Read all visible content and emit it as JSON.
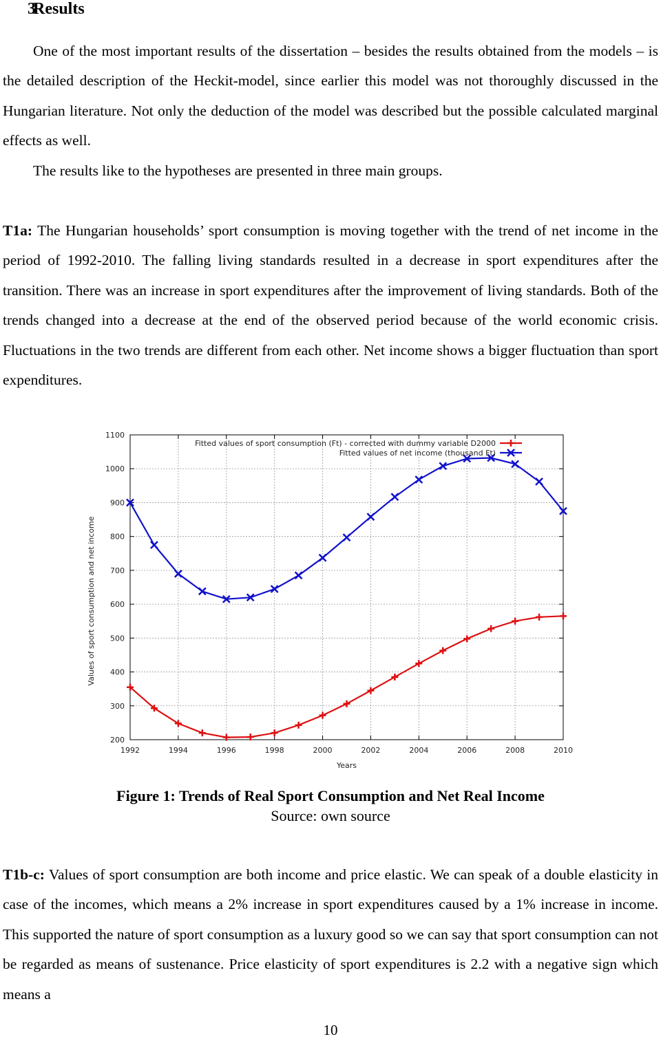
{
  "section": {
    "number": "3",
    "title": "Results"
  },
  "paragraphs": {
    "p1": "One of the most important results of the dissertation – besides the results obtained from the models – is the detailed description of the Heckit-model, since earlier this model was not thoroughly discussed in the Hungarian literature. Not only the deduction of the model was described but the possible calculated marginal effects as well.",
    "p2": "The results like to the hypotheses are presented in three main groups.",
    "p3_label": "T1a:",
    "p3": " The Hungarian households’ sport consumption is moving together with the trend of net income in the period of 1992-2010. The falling living standards resulted in a decrease in sport expenditures after the transition. There was an increase in sport expenditures after the improvement of living standards. Both of the trends changed into a decrease at the end of the observed period because of the world economic crisis. Fluctuations in the two trends are different from each other. Net income shows a bigger fluctuation than sport expenditures.",
    "p4_label": "T1b-c:",
    "p4": " Values of sport consumption are both income and price elastic. We can speak of a double elasticity in case of the incomes, which means a 2% increase in sport expenditures caused by a 1% increase in income. This supported the nature of sport consumption as a luxury good so we can say that sport consumption can not be regarded as means of sustenance. Price elasticity of sport expenditures is 2.2 with a negative sign which means a"
  },
  "figure": {
    "caption": "Figure 1: Trends of Real Sport Consumption and Net Real Income",
    "source": "Source: own source"
  },
  "page_number": "10",
  "chart_data": {
    "type": "line",
    "title": "",
    "xlabel": "Years",
    "ylabel": "Values of sport consumption and net income",
    "xlim": [
      1992,
      2010
    ],
    "ylim": [
      200,
      1100
    ],
    "x_ticks": [
      1992,
      1994,
      1996,
      1998,
      2000,
      2002,
      2004,
      2006,
      2008,
      2010
    ],
    "y_ticks": [
      200,
      300,
      400,
      500,
      600,
      700,
      800,
      900,
      1000,
      1100
    ],
    "grid": true,
    "legend_position": "top-right",
    "x": [
      1992,
      1993,
      1994,
      1995,
      1996,
      1997,
      1998,
      1999,
      2000,
      2001,
      2002,
      2003,
      2004,
      2005,
      2006,
      2007,
      2008,
      2009,
      2010
    ],
    "series": [
      {
        "name": "Fitted values of sport consumption (Ft) - corrected with dummy variable D2000",
        "color": "#dd1111",
        "marker": "plus",
        "values": [
          355,
          293,
          248,
          220,
          207,
          208,
          220,
          243,
          272,
          306,
          345,
          385,
          425,
          463,
          498,
          528,
          550,
          562,
          565
        ]
      },
      {
        "name": "Fitted values of net income (thousand Ft)",
        "color": "#1111cc",
        "marker": "x",
        "values": [
          900,
          775,
          690,
          638,
          615,
          620,
          645,
          685,
          737,
          797,
          858,
          917,
          968,
          1008,
          1030,
          1032,
          1014,
          962,
          875
        ]
      }
    ]
  }
}
